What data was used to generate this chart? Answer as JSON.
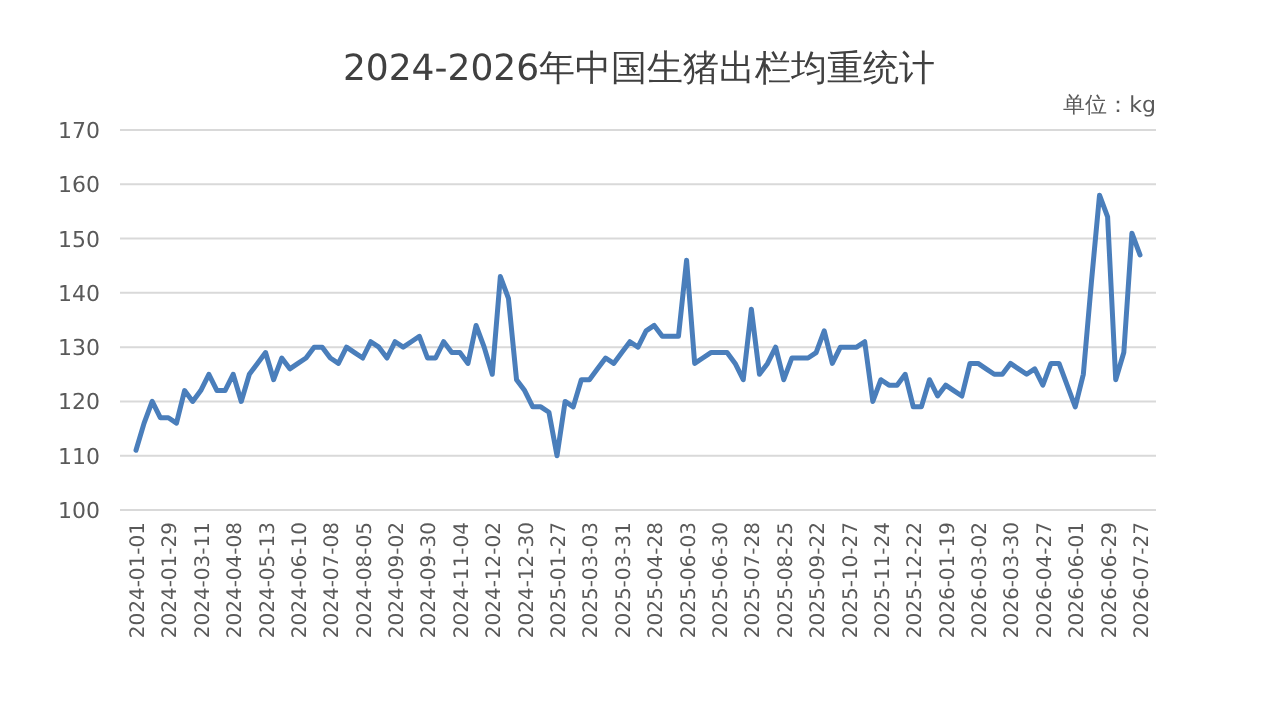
{
  "chart_data": {
    "type": "line",
    "title": "2024-2026年中国生猪出栏均重统计",
    "annotations": [
      "单位：kg"
    ],
    "categories": [
      "2024-01-01",
      null,
      null,
      null,
      "2024-01-29",
      null,
      null,
      null,
      "2024-03-11",
      null,
      null,
      null,
      "2024-04-08",
      null,
      null,
      null,
      "2024-05-13",
      null,
      null,
      null,
      "2024-06-10",
      null,
      null,
      null,
      "2024-07-08",
      null,
      null,
      null,
      "2024-08-05",
      null,
      null,
      null,
      "2024-09-02",
      null,
      null,
      null,
      "2024-09-30",
      null,
      null,
      null,
      "2024-11-04",
      null,
      null,
      null,
      "2024-12-02",
      null,
      null,
      null,
      "2024-12-30",
      null,
      null,
      null,
      "2025-01-27",
      null,
      null,
      null,
      "2025-03-03",
      null,
      null,
      null,
      "2025-03-31",
      null,
      null,
      null,
      "2025-04-28",
      null,
      null,
      null,
      "2025-06-03",
      null,
      null,
      null,
      "2025-06-30",
      null,
      null,
      null,
      "2025-07-28",
      null,
      null,
      null,
      "2025-08-25",
      null,
      null,
      null,
      "2025-09-22",
      null,
      null,
      null,
      "2025-10-27",
      null,
      null,
      null,
      "2025-11-24",
      null,
      null,
      null,
      "2025-12-22",
      null,
      null,
      null,
      "2026-01-19",
      null,
      null,
      null,
      "2026-03-02",
      null,
      null,
      null,
      "2026-03-30",
      null,
      null,
      null,
      "2026-04-27",
      null,
      null,
      null,
      "2026-06-01",
      null,
      null,
      null,
      "2026-06-29",
      null,
      null,
      null,
      "2026-07-27"
    ],
    "series": [
      {
        "color": "#4a7ebb",
        "values": [
          111,
          116,
          120,
          117,
          117,
          116,
          122,
          120,
          122,
          125,
          122,
          122,
          125,
          120,
          125,
          127,
          129,
          124,
          128,
          126,
          127,
          128,
          130,
          130,
          128,
          127,
          130,
          129,
          128,
          131,
          130,
          128,
          131,
          130,
          131,
          132,
          128,
          128,
          131,
          129,
          129,
          127,
          134,
          130,
          125,
          143,
          139,
          124,
          122,
          119,
          119,
          118,
          110,
          120,
          119,
          124,
          124,
          126,
          128,
          127,
          129,
          131,
          130,
          133,
          134,
          132,
          132,
          132,
          146,
          127,
          128,
          129,
          129,
          129,
          127,
          124,
          137,
          125,
          127,
          130,
          124,
          128,
          128,
          128,
          129,
          133,
          127,
          130,
          130,
          130,
          131,
          120,
          124,
          123,
          123,
          125,
          119,
          119,
          124,
          121,
          123,
          122,
          121,
          127,
          127,
          126,
          125,
          125,
          127,
          126,
          125,
          126,
          123,
          127,
          127,
          123,
          119,
          125,
          142,
          158,
          154,
          124,
          129,
          151,
          147
        ]
      }
    ],
    "ylim": [
      100,
      170
    ],
    "yticks": [
      100,
      110,
      120,
      130,
      140,
      150,
      160,
      170
    ],
    "grid": "y",
    "marker": "none",
    "line_style": "solid"
  }
}
